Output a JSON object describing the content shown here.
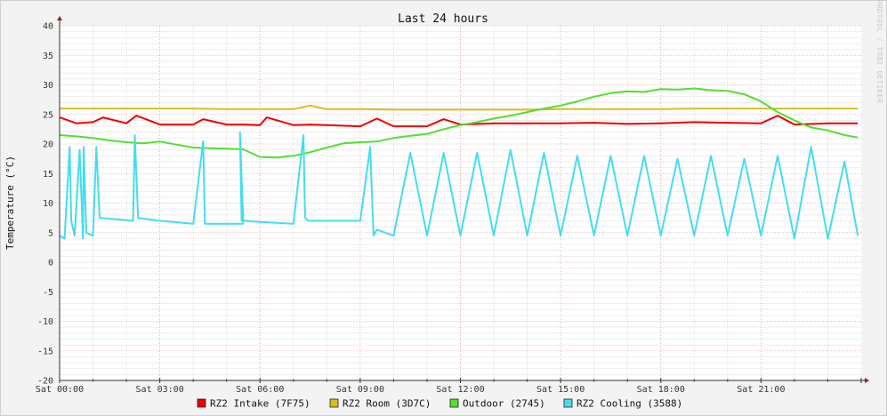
{
  "chart_data": {
    "type": "line",
    "title": "Last 24 hours",
    "ylabel": "Temperature (°C)",
    "xlabel": "",
    "watermark": "RRDTOOL / TOBI OETIKER",
    "ylim": [
      -20,
      40
    ],
    "y_ticks": [
      40,
      35,
      30,
      25,
      20,
      15,
      10,
      5,
      0,
      -5,
      -10,
      -15,
      -20
    ],
    "x_range_hours": [
      0,
      24
    ],
    "x_ticks": [
      {
        "label": "Sat 00:00",
        "hour": 0
      },
      {
        "label": "Sat 03:00",
        "hour": 3
      },
      {
        "label": "Sat 06:00",
        "hour": 6
      },
      {
        "label": "Sat 09:00",
        "hour": 9
      },
      {
        "label": "Sat 12:00",
        "hour": 12
      },
      {
        "label": "Sat 15:00",
        "hour": 15
      },
      {
        "label": "Sat 18:00",
        "hour": 18
      },
      {
        "label": "Sat 21:00",
        "hour": 21
      }
    ],
    "grid": true,
    "legend_position": "bottom",
    "series": [
      {
        "name": "RZ2 Intake (7F75)",
        "color": "#ee0000",
        "x": [
          0,
          0.5,
          1,
          1.3,
          2,
          2.3,
          3,
          4,
          4.3,
          5,
          5.5,
          6,
          6.2,
          7,
          7.5,
          8,
          9,
          9.5,
          10,
          11,
          11.5,
          12,
          13,
          14,
          15,
          16,
          17,
          18,
          19,
          20,
          21,
          21.5,
          22,
          23,
          23.9
        ],
        "y": [
          24.5,
          23.5,
          23.7,
          24.5,
          23.5,
          24.8,
          23.3,
          23.3,
          24.2,
          23.3,
          23.3,
          23.2,
          24.5,
          23.2,
          23.3,
          23.2,
          23.0,
          24.3,
          23.0,
          23.0,
          24.2,
          23.3,
          23.5,
          23.5,
          23.5,
          23.6,
          23.4,
          23.5,
          23.7,
          23.6,
          23.5,
          24.8,
          23.3,
          23.5,
          23.5
        ]
      },
      {
        "name": "RZ2 Room (3D7C)",
        "color": "#ddbb22",
        "x": [
          0,
          1,
          2,
          3,
          4,
          5,
          6,
          7,
          7.5,
          8,
          9,
          10,
          11,
          12,
          13,
          14,
          15,
          16,
          17,
          18,
          19,
          20,
          21,
          22,
          23,
          23.9
        ],
        "y": [
          26.0,
          26.0,
          26.0,
          26.0,
          26.0,
          25.9,
          25.9,
          25.9,
          26.5,
          25.9,
          25.9,
          25.8,
          25.8,
          25.8,
          25.8,
          25.8,
          25.9,
          25.9,
          25.9,
          25.9,
          26.0,
          26.0,
          26.0,
          26.0,
          26.0,
          26.0
        ]
      },
      {
        "name": "Outdoor (2745)",
        "color": "#55dd33",
        "x": [
          0,
          0.5,
          1,
          1.5,
          2,
          2.5,
          3,
          3.5,
          4,
          4.5,
          5,
          5.5,
          6,
          6.5,
          7,
          7.5,
          8,
          8.5,
          9,
          9.5,
          10,
          10.5,
          11,
          11.5,
          12,
          12.5,
          13,
          13.5,
          14,
          14.5,
          15,
          15.5,
          16,
          16.5,
          17,
          17.5,
          18,
          18.5,
          19,
          19.5,
          20,
          20.5,
          21,
          21.5,
          22,
          22.5,
          23,
          23.5,
          23.9
        ],
        "y": [
          21.5,
          21.3,
          21.0,
          20.6,
          20.3,
          20.1,
          20.4,
          19.9,
          19.4,
          19.3,
          19.2,
          19.1,
          17.8,
          17.7,
          18.0,
          18.6,
          19.4,
          20.1,
          20.3,
          20.4,
          21.0,
          21.4,
          21.7,
          22.5,
          23.2,
          23.7,
          24.3,
          24.8,
          25.4,
          26.0,
          26.5,
          27.2,
          28.0,
          28.6,
          28.9,
          28.8,
          29.3,
          29.2,
          29.4,
          29.1,
          29.0,
          28.4,
          27.2,
          25.4,
          24.0,
          22.8,
          22.3,
          21.5,
          21.1
        ]
      },
      {
        "name": "RZ2 Cooling (3588)",
        "color": "#44ddee",
        "x": [
          0,
          0.15,
          0.3,
          0.35,
          0.45,
          0.6,
          0.7,
          0.72,
          0.8,
          1.0,
          1.1,
          1.2,
          2.2,
          2.25,
          2.35,
          3.0,
          4.0,
          4.3,
          4.35,
          4.45,
          5.5,
          5.4,
          5.45,
          5.55,
          6.0,
          7.0,
          7.3,
          7.35,
          7.45,
          8.5,
          9.0,
          9.3,
          9.4,
          9.5,
          10.0,
          10.5,
          11.0,
          11.5,
          12.0,
          12.5,
          13.0,
          13.5,
          14.0,
          14.5,
          15.0,
          15.5,
          16.0,
          16.5,
          17.0,
          17.5,
          18.0,
          18.5,
          19.0,
          19.5,
          20.0,
          20.5,
          21.0,
          21.5,
          22.0,
          22.5,
          23.0,
          23.5,
          23.9
        ],
        "y": [
          4.5,
          4.0,
          19.5,
          7.0,
          4.5,
          19.0,
          4.0,
          19.5,
          5.0,
          4.5,
          19.5,
          7.5,
          7.0,
          21.5,
          7.5,
          7.0,
          6.5,
          20.5,
          6.5,
          6.5,
          6.5,
          22.0,
          7.0,
          7.0,
          6.8,
          6.5,
          21.5,
          7.5,
          7.0,
          7.0,
          7.0,
          19.5,
          4.5,
          5.5,
          4.5,
          18.5,
          4.5,
          18.5,
          4.5,
          18.5,
          4.5,
          19.0,
          4.5,
          18.5,
          4.5,
          18.0,
          4.5,
          18.0,
          4.5,
          18.0,
          4.5,
          17.5,
          4.5,
          18.0,
          4.5,
          17.5,
          4.5,
          18.0,
          4.0,
          19.5,
          4.0,
          17.0,
          4.5
        ]
      }
    ]
  }
}
